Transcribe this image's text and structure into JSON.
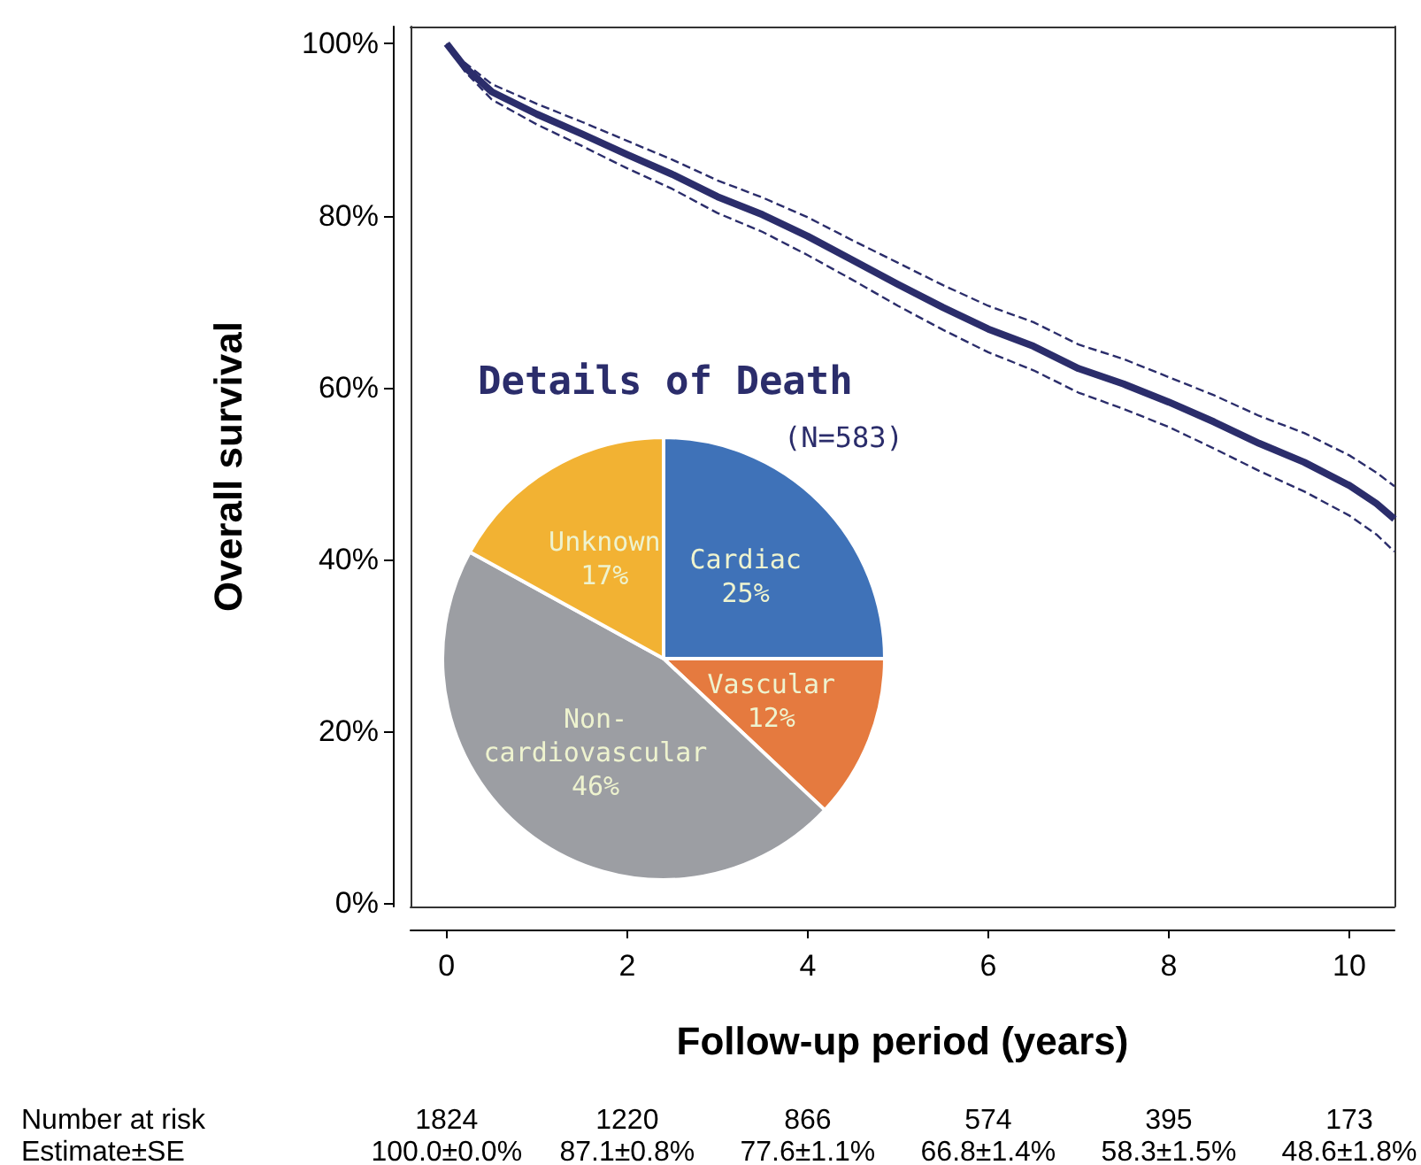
{
  "chart_data": [
    {
      "type": "line",
      "xlabel": "Follow-up period (years)",
      "ylabel": "Overall survival",
      "x": [
        0,
        0.2,
        0.5,
        1,
        1.5,
        2,
        2.5,
        3,
        3.5,
        4,
        4.5,
        5,
        5.5,
        6,
        6.5,
        7,
        7.5,
        8,
        8.5,
        9,
        9.5,
        10,
        10.3,
        10.5
      ],
      "series": [
        {
          "color": "#2b2d6b",
          "values": [
            100,
            97.3,
            94.4,
            91.8,
            89.5,
            87.1,
            84.8,
            82.2,
            80.1,
            77.6,
            74.8,
            72.0,
            69.3,
            66.8,
            64.8,
            62.2,
            60.4,
            58.3,
            56.0,
            53.5,
            51.3,
            48.6,
            46.5,
            44.7
          ]
        },
        {
          "color": "#2b2d6b",
          "line_style": "dashed",
          "values": [
            100,
            96.8,
            93.5,
            90.6,
            88.1,
            85.5,
            83.1,
            80.3,
            78.1,
            75.4,
            72.5,
            69.5,
            66.7,
            64.1,
            62.0,
            59.4,
            57.5,
            55.4,
            52.9,
            50.3,
            47.9,
            45.1,
            42.9,
            40.9
          ]
        },
        {
          "color": "#2b2d6b",
          "line_style": "dashed",
          "values": [
            100,
            97.8,
            95.3,
            93.0,
            90.9,
            88.7,
            86.5,
            84.1,
            82.1,
            79.8,
            77.1,
            74.5,
            71.9,
            69.5,
            67.6,
            65.0,
            63.3,
            61.2,
            59.1,
            56.7,
            54.7,
            52.1,
            50.1,
            48.5
          ]
        }
      ],
      "xlim": [
        -0.4,
        10.5
      ],
      "ylim": [
        -0.4,
        102
      ],
      "xticks": [
        0,
        2,
        4,
        6,
        8,
        10
      ],
      "yticks": [
        {
          "value": 0,
          "label": "0%"
        },
        {
          "value": 20,
          "label": "20%"
        },
        {
          "value": 40,
          "label": "40%"
        },
        {
          "value": 60,
          "label": "60%"
        },
        {
          "value": 80,
          "label": "80%"
        },
        {
          "value": 100,
          "label": "100%"
        }
      ],
      "grid": false,
      "marker": "none",
      "line_style": "solid",
      "annotations": [
        "Number at risk",
        "1824",
        "1220",
        "866",
        "574",
        "395",
        "173",
        "Estimate±SE",
        "100.0±0.0%",
        "87.1±0.8%",
        "77.6±1.1%",
        "66.8±1.4%",
        "58.3±1.5%",
        "48.6±1.8%"
      ]
    },
    {
      "type": "pie",
      "title": "Details of Death",
      "subtitle": "(N=583)",
      "categories": [
        "Cardiac",
        "Vascular",
        "Non-cardiovascular",
        "Unknown"
      ],
      "values": [
        25,
        12,
        46,
        17
      ],
      "value_labels": [
        "25%",
        "12%",
        "46%",
        "17%"
      ],
      "colors": [
        "#3f72b8",
        "#e57a3f",
        "#9c9ea3",
        "#f2b233"
      ]
    }
  ]
}
